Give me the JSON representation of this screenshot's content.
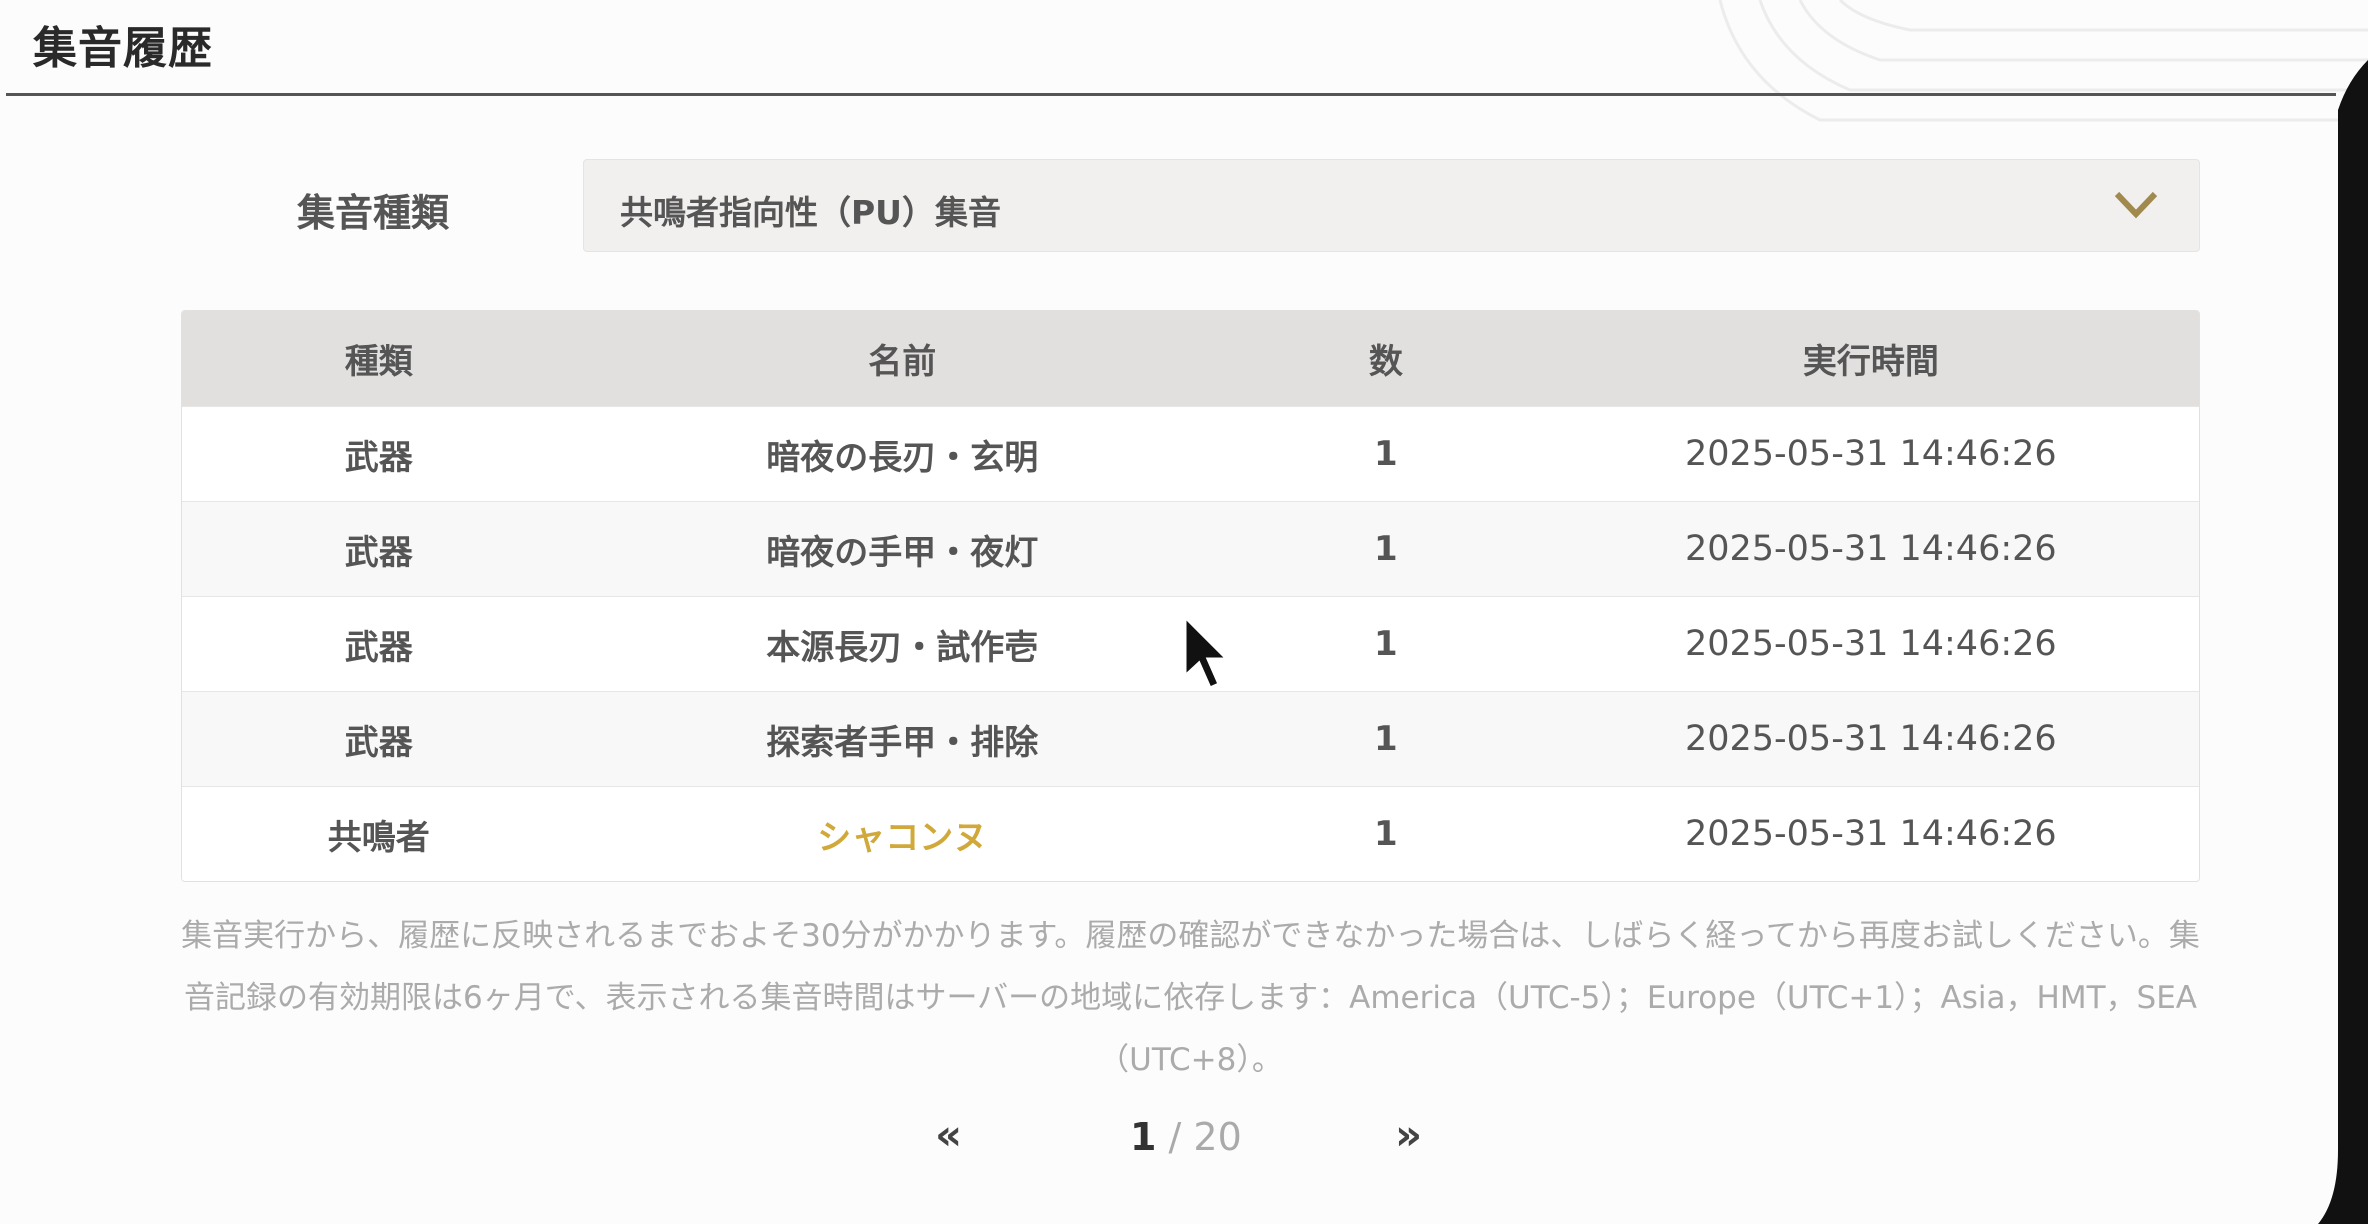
{
  "header": {
    "title": "集音履歴"
  },
  "filter": {
    "label": "集音種類",
    "selected": "共鳴者指向性（PU）集音"
  },
  "table": {
    "columns": [
      "種類",
      "名前",
      "数",
      "実行時間"
    ],
    "rows": [
      {
        "type": "武器",
        "name": "暗夜の長刃・玄明",
        "count": "1",
        "time": "2025-05-31 14:46:26"
      },
      {
        "type": "武器",
        "name": "暗夜の手甲・夜灯",
        "count": "1",
        "time": "2025-05-31 14:46:26"
      },
      {
        "type": "武器",
        "name": "本源長刃・試作壱",
        "count": "1",
        "time": "2025-05-31 14:46:26"
      },
      {
        "type": "武器",
        "name": "探索者手甲・排除",
        "count": "1",
        "time": "2025-05-31 14:46:26"
      },
      {
        "type": "共鳴者",
        "name": "シャコンヌ",
        "count": "1",
        "time": "2025-05-31 14:46:26",
        "highlight": true
      }
    ]
  },
  "note": "集音実行から、履歴に反映されるまでおよそ30分がかかります。履歴の確認ができなかった場合は、しばらく経ってから再度お試しください。集音記録の有効期限は6ヶ月で、表示される集音時間はサーバーの地域に依存します：America（UTC-5）；Europe（UTC+1）；Asia，HMT，SEA（UTC+8）。",
  "pagination": {
    "prev_icon": "double-chevron-left-icon",
    "prev": "«",
    "current": "1",
    "separator": " / ",
    "total": "20",
    "next_icon": "double-chevron-right-icon",
    "next": "»"
  },
  "colors": {
    "accent_gold": "#d1a93a",
    "chevron": "#a08a4e",
    "header_bg": "#e2e0df",
    "select_bg": "#f2f0ef"
  }
}
